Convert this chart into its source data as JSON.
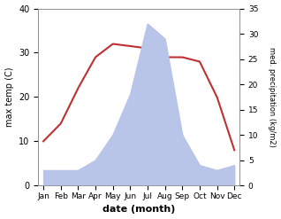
{
  "months": [
    "Jan",
    "Feb",
    "Mar",
    "Apr",
    "May",
    "Jun",
    "Jul",
    "Aug",
    "Sep",
    "Oct",
    "Nov",
    "Dec"
  ],
  "temperature": [
    10,
    14,
    22,
    29,
    32,
    31.5,
    31,
    29,
    29,
    28,
    20,
    8
  ],
  "precipitation": [
    3,
    3,
    3,
    5,
    10,
    18,
    32,
    29,
    10,
    4,
    3,
    4
  ],
  "temp_color": "#c03030",
  "precip_fill_color": "#b8c4e8",
  "ylabel_left": "max temp (C)",
  "ylabel_right": "med. precipitation (kg/m2)",
  "xlabel": "date (month)",
  "ylim_left": [
    0,
    40
  ],
  "ylim_right": [
    0,
    35
  ],
  "yticks_left": [
    0,
    10,
    20,
    30,
    40
  ],
  "yticks_right": [
    0,
    5,
    10,
    15,
    20,
    25,
    30,
    35
  ],
  "background_color": "#ffffff"
}
